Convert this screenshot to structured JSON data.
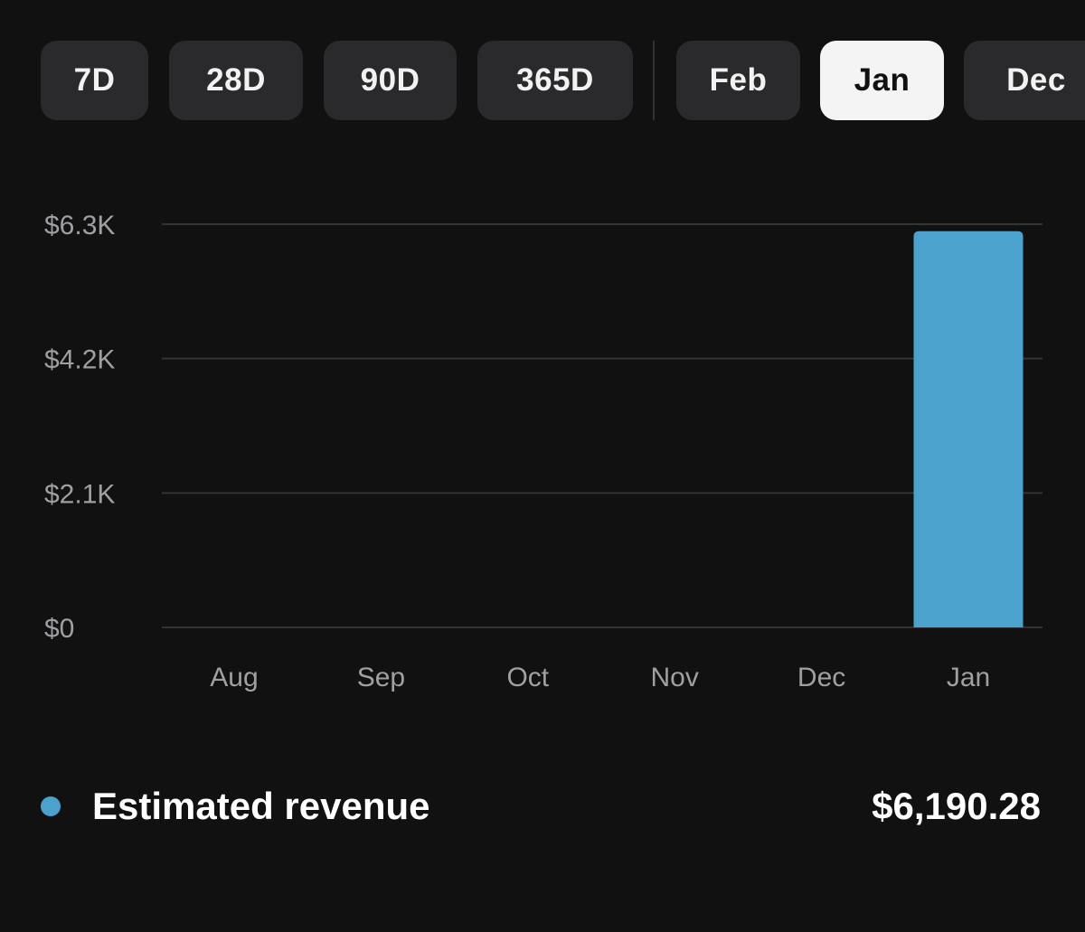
{
  "filters": {
    "ranges": [
      "7D",
      "28D",
      "90D",
      "365D"
    ],
    "months": [
      "Feb",
      "Jan",
      "Dec"
    ],
    "selected": "Jan"
  },
  "colors": {
    "background": "#111111",
    "bar": "#4ba3cd",
    "gridline": "#333335",
    "tick_text": "#a0a0a4"
  },
  "chart_data": {
    "type": "bar",
    "title": "",
    "xlabel": "",
    "ylabel": "",
    "categories": [
      "Aug",
      "Sep",
      "Oct",
      "Nov",
      "Dec",
      "Jan"
    ],
    "values": [
      0,
      0,
      0,
      0,
      0,
      6190.28
    ],
    "ylim": [
      0,
      6300
    ],
    "y_ticks": [
      {
        "value": 0,
        "label": "$0"
      },
      {
        "value": 2100,
        "label": "$2.1K"
      },
      {
        "value": 4200,
        "label": "$4.2K"
      },
      {
        "value": 6300,
        "label": "$6.3K"
      }
    ],
    "grid": true,
    "series_name": "Estimated revenue"
  },
  "legend": {
    "label": "Estimated revenue",
    "total": "$6,190.28"
  }
}
